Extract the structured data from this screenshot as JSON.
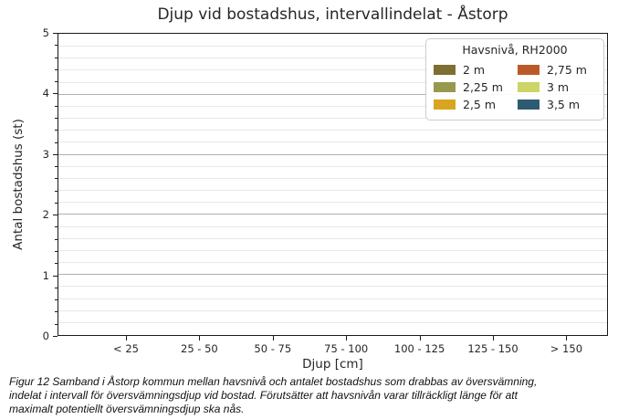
{
  "chart_data": {
    "type": "bar",
    "title": "Djup vid bostadshus, intervallindelat - Åstorp",
    "xlabel": "Djup [cm]",
    "ylabel": "Antal bostadshus (st)",
    "categories": [
      "< 25",
      "25 - 50",
      "50 - 75",
      "75 - 100",
      "100 - 125",
      "125 - 150",
      "> 150"
    ],
    "series": [
      {
        "name": "2 m",
        "color": "#7e6e31",
        "values": [
          0,
          0,
          0,
          0,
          0,
          0,
          0
        ]
      },
      {
        "name": "2,25 m",
        "color": "#97994e",
        "values": [
          0,
          0,
          0,
          0,
          0,
          0,
          0
        ]
      },
      {
        "name": "2,5 m",
        "color": "#d9a41f",
        "values": [
          0,
          0,
          0,
          0,
          0,
          0,
          0
        ]
      },
      {
        "name": "2,75 m",
        "color": "#bc5a27",
        "values": [
          0,
          0,
          0,
          0,
          0,
          0,
          0
        ]
      },
      {
        "name": "3 m",
        "color": "#ccd566",
        "values": [
          0,
          0,
          0,
          0,
          0,
          0,
          0
        ]
      },
      {
        "name": "3,5 m",
        "color": "#2e5b72",
        "values": [
          0,
          0,
          0,
          0,
          0,
          0,
          0
        ]
      }
    ],
    "ylim": [
      0,
      5
    ],
    "y_major_ticks": [
      0,
      1,
      2,
      3,
      4,
      5
    ],
    "y_minor_step": 0.2,
    "grid": "horizontal, major and minor lines",
    "legend": {
      "title": "Havsnivå, RH2000",
      "position": "upper right",
      "columns": 2
    }
  },
  "caption": {
    "lines": [
      "Figur 12 Samband i Åstorp kommun mellan havsnivå och antalet bostadshus som drabbas av översvämning,",
      "indelat i intervall för översvämningsdjup vid bostad. Förutsätter att havsnivån varar tillräckligt länge för att",
      "maximalt potentiellt översvämningsdjup ska nås."
    ]
  }
}
